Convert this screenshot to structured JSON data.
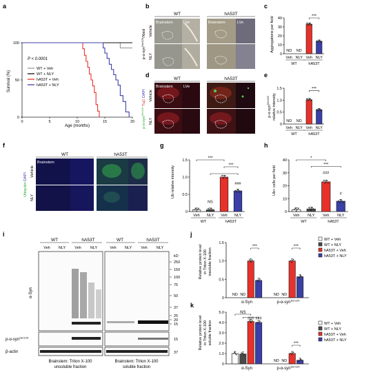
{
  "panels": {
    "a": {
      "letter": "a",
      "pvalue": "P < 0.0001",
      "ylabel": "Survival (%)",
      "xlabel": "Age (months)",
      "yticks": [
        "0",
        "50",
        "100"
      ],
      "xticks": [
        "0",
        "5",
        "10",
        "15",
        "20"
      ],
      "legend": [
        "WT + Veh",
        "WT + NLY",
        "hA53T + Veh",
        "hA53T + NLY"
      ]
    },
    "b": {
      "letter": "b",
      "groups": [
        "WT",
        "hA53T"
      ],
      "cols": [
        "Brainstem",
        "LVe"
      ],
      "rows": [
        "Vehicle",
        "NLY"
      ],
      "marker_main": "p-α-syn",
      "marker_sup": "Ser129",
      "marker_tail": "/Nissl"
    },
    "c": {
      "letter": "c",
      "ylabel": "Aggregations per field",
      "yticks": [
        "0",
        "10",
        "20",
        "30",
        "40"
      ],
      "nd": "ND",
      "sig": "***",
      "treat": [
        "Veh",
        "NLY",
        "Veh",
        "NLY"
      ],
      "geno": [
        "WT",
        "hA53T"
      ]
    },
    "d": {
      "letter": "d",
      "groups": [
        "WT",
        "hA53T"
      ],
      "cols": [
        "Brainstem",
        "LVe"
      ],
      "rows": [
        "Vehicle",
        "NLY"
      ],
      "stain_a": "p-α-syn",
      "stain_a_sup": "Ser129",
      "stain_b": "Tuj1",
      "stain_c": "DAPI"
    },
    "e": {
      "letter": "e",
      "ylabel_main": "p-α-syn",
      "ylabel_sup": "Ser129",
      "ylabel2": "relative intensity",
      "yticks": [
        "0",
        "0.5",
        "1.0",
        "1.5"
      ],
      "nd": "ND",
      "sig": "***",
      "treat": [
        "Veh",
        "NLY",
        "Veh",
        "NLY"
      ],
      "geno": [
        "WT",
        "hA53T"
      ]
    },
    "f": {
      "letter": "f",
      "groups": [
        "WT",
        "hA53T"
      ],
      "col": "Brainstem",
      "rows": [
        "Vehicle",
        "NLY"
      ],
      "stain_a": "Ubiquitin",
      "stain_b": "DAPI"
    },
    "g": {
      "letter": "g",
      "ylabel": "Ub relative intensity",
      "yticks": [
        "0",
        "0.5",
        "1.0",
        "1.5"
      ],
      "sig": [
        "***",
        "***"
      ],
      "ns": "NS",
      "hash": "###",
      "treat": [
        "Veh",
        "NLY",
        "Veh",
        "NLY"
      ],
      "geno": [
        "WT",
        "hA53T"
      ]
    },
    "h": {
      "letter": "h",
      "ylabel": "Ub+ cells per field",
      "yticks": [
        "0",
        "10",
        "20",
        "30",
        "40"
      ],
      "sig": [
        "*",
        "***"
      ],
      "hash": [
        "###",
        "#"
      ],
      "treat": [
        "Veh",
        "NLY",
        "Veh",
        "NLY"
      ],
      "geno": [
        "WT",
        "hA53T"
      ]
    },
    "i": {
      "letter": "i",
      "groups_top": [
        "WT",
        "hA53T",
        "WT",
        "hA53T"
      ],
      "lanes": [
        "Veh",
        "NLY",
        "Veh",
        "NLY",
        "Veh",
        "NLY",
        "Veh",
        "NLY"
      ],
      "kd": "kD",
      "mw": [
        "250",
        "150",
        "100",
        "75",
        "50",
        "37",
        "25",
        "20",
        "15"
      ],
      "mw_lower": [
        "15",
        "37"
      ],
      "mw_mid": "15",
      "row_labels": [
        "α-Syn",
        "p-α-syn",
        "β-actin"
      ],
      "row_sup": "Ser129",
      "captions": [
        "Brainstem: Triton X-100",
        "unsoluble fraction",
        "Brainstem: Triton X-100",
        "soluble fraction"
      ]
    },
    "j": {
      "letter": "j",
      "ylabel": [
        "Relative protein level",
        "in Triton X-100",
        "insoluble fraction"
      ],
      "yticks": [
        "0",
        "0.5",
        "1.0",
        "1.5"
      ],
      "nd": "ND",
      "sig": "***",
      "xcats": [
        "α-Syn",
        "p-α-syn"
      ],
      "xsup": "Ser129",
      "legend": [
        "WT + Veh",
        "WT + NLY",
        "hA53T + Veh",
        "hA53T + NLY"
      ]
    },
    "k": {
      "letter": "k",
      "ylabel": [
        "Relative protein level",
        "in Triton X-100",
        "soluble fraction"
      ],
      "yticks": [
        "0",
        "1.0",
        "2.0",
        "3.0",
        "4.0",
        "5.0"
      ],
      "nd": "ND",
      "ns": "NS",
      "sig": "***",
      "hash": "###",
      "xcats": [
        "α-Syn",
        "p-α-syn"
      ],
      "xsup": "Ser129",
      "legend": [
        "WT + Veh",
        "WT + NLY",
        "hA53T + Veh",
        "hA53T + NLY"
      ]
    }
  },
  "colors": {
    "wt_veh": "#ffffff",
    "wt_nly": "#4a4a4a",
    "a53t_veh": "#e8312a",
    "a53t_nly": "#3b3fa8",
    "axis": "#222222"
  },
  "chart_data": [
    {
      "panel": "a",
      "type": "line",
      "xlabel": "Age (months)",
      "ylabel": "Survival (%)",
      "xlim": [
        0,
        20
      ],
      "ylim": [
        0,
        100
      ],
      "series": [
        {
          "name": "WT + Veh",
          "x": [
            0,
            17.8,
            17.8,
            20
          ],
          "y": [
            100,
            100,
            93,
            93
          ]
        },
        {
          "name": "WT + NLY",
          "x": [
            0,
            20
          ],
          "y": [
            100,
            100
          ]
        },
        {
          "name": "hA53T + Veh",
          "x": [
            0,
            10.5,
            11,
            11.3,
            11.6,
            11.9,
            12.2,
            12.5,
            12.8,
            13.1,
            13.4,
            13.7,
            14
          ],
          "y": [
            100,
            100,
            92,
            83,
            75,
            67,
            58,
            50,
            42,
            33,
            17,
            8,
            0
          ]
        },
        {
          "name": "hA53T + NLY",
          "x": [
            0,
            14.2,
            14.7,
            15,
            15.4,
            15.8,
            16.2,
            16.6,
            17,
            17.4,
            17.8,
            18.3,
            18.8,
            19.4
          ],
          "y": [
            100,
            100,
            93,
            86,
            79,
            71,
            64,
            57,
            50,
            43,
            29,
            21,
            7,
            0
          ]
        }
      ]
    },
    {
      "panel": "c",
      "type": "bar",
      "ylabel": "Aggregations per field",
      "ylim": [
        0,
        40
      ],
      "categories": [
        "WT Veh",
        "WT NLY",
        "hA53T Veh",
        "hA53T NLY"
      ],
      "values": [
        0,
        0,
        33,
        14
      ],
      "nd": [
        true,
        true,
        false,
        false
      ]
    },
    {
      "panel": "e",
      "type": "bar",
      "ylabel": "p-α-syn Ser129 relative intensity",
      "ylim": [
        0,
        1.5
      ],
      "categories": [
        "WT Veh",
        "WT NLY",
        "hA53T Veh",
        "hA53T NLY"
      ],
      "values": [
        0,
        0,
        1.02,
        0.6
      ],
      "nd": [
        true,
        true,
        false,
        false
      ]
    },
    {
      "panel": "g",
      "type": "bar",
      "ylabel": "Ub relative intensity",
      "ylim": [
        0,
        1.5
      ],
      "categories": [
        "WT Veh",
        "WT NLY",
        "hA53T Veh",
        "hA53T NLY"
      ],
      "values": [
        0.05,
        0.05,
        1.0,
        0.6
      ]
    },
    {
      "panel": "h",
      "type": "bar",
      "ylabel": "Ub+ cells per field",
      "ylim": [
        0,
        40
      ],
      "categories": [
        "WT Veh",
        "WT NLY",
        "hA53T Veh",
        "hA53T NLY"
      ],
      "values": [
        1.5,
        2,
        23,
        8
      ]
    },
    {
      "panel": "j",
      "type": "bar",
      "ylim": [
        0,
        1.5
      ],
      "categories": [
        "α-Syn",
        "p-α-syn Ser129"
      ],
      "series": [
        {
          "name": "WT + Veh",
          "values": [
            0,
            0
          ]
        },
        {
          "name": "WT + NLY",
          "values": [
            0,
            0
          ]
        },
        {
          "name": "hA53T + Veh",
          "values": [
            1.0,
            1.0
          ]
        },
        {
          "name": "hA53T + NLY",
          "values": [
            0.47,
            0.57
          ]
        }
      ],
      "nd": [
        [
          true,
          true
        ],
        [
          true,
          true
        ],
        [
          false,
          false
        ],
        [
          false,
          false
        ]
      ]
    },
    {
      "panel": "k",
      "type": "bar",
      "ylim": [
        0,
        5
      ],
      "categories": [
        "α-Syn",
        "p-α-syn Ser129"
      ],
      "series": [
        {
          "name": "WT + Veh",
          "values": [
            1.0,
            0
          ]
        },
        {
          "name": "WT + NLY",
          "values": [
            0.95,
            0
          ]
        },
        {
          "name": "hA53T + Veh",
          "values": [
            4.1,
            1.0
          ]
        },
        {
          "name": "hA53T + NLY",
          "values": [
            4.0,
            0.35
          ]
        }
      ],
      "nd": [
        [
          false,
          true
        ],
        [
          false,
          true
        ],
        [
          false,
          false
        ],
        [
          false,
          false
        ]
      ]
    }
  ]
}
